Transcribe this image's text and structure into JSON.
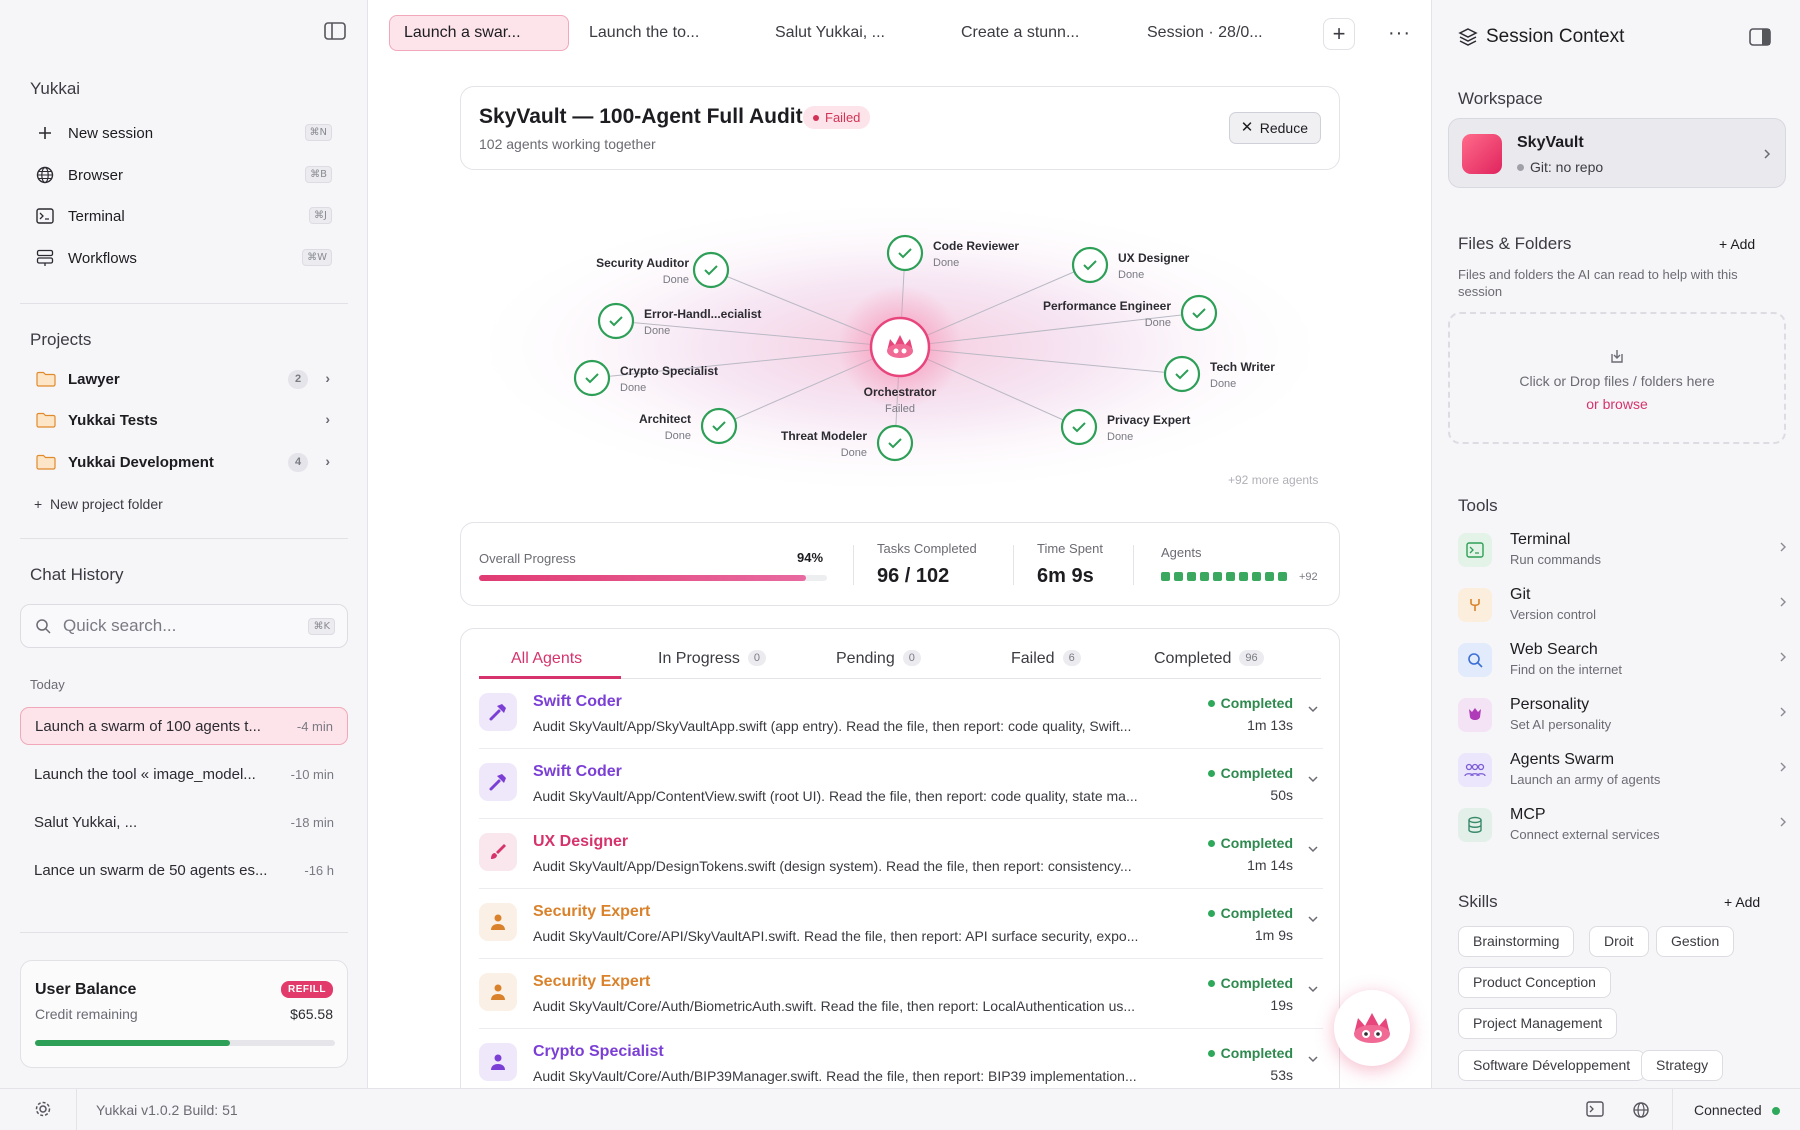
{
  "sidebar": {
    "app_name": "Yukkai",
    "menu": [
      {
        "label": "New session",
        "shortcut": "⌘N",
        "icon": "plus-icon"
      },
      {
        "label": "Browser",
        "shortcut": "⌘B",
        "icon": "globe-icon"
      },
      {
        "label": "Terminal",
        "shortcut": "⌘J",
        "icon": "terminal-icon"
      },
      {
        "label": "Workflows",
        "shortcut": "⌘W",
        "icon": "workflow-icon"
      }
    ],
    "projects_heading": "Projects",
    "projects": [
      {
        "label": "Lawyer",
        "count": "2"
      },
      {
        "label": "Yukkai Tests",
        "count": ""
      },
      {
        "label": "Yukkai Development",
        "count": "4"
      }
    ],
    "new_project_label": "New project folder",
    "history_heading": "Chat History",
    "search_placeholder": "Quick search...",
    "search_shortcut": "⌘K",
    "today_label": "Today",
    "history": [
      {
        "title": "Launch a swarm of 100 agents t...",
        "time": "-4 min",
        "active": true
      },
      {
        "title": "Launch the tool « image_model...",
        "time": "-10 min",
        "active": false
      },
      {
        "title": "Salut Yukkai, ...",
        "time": "-18 min",
        "active": false
      },
      {
        "title": "Lance un swarm de 50 agents  es...",
        "time": "-16 h",
        "active": false
      }
    ],
    "balance": {
      "title": "User Balance",
      "subtitle": "Credit remaining",
      "refill_label": "REFILL",
      "amount": "$65.58",
      "progress_fraction": 0.65
    }
  },
  "tabs": [
    {
      "label": "Launch a swar...",
      "active": true
    },
    {
      "label": "Launch the to...",
      "active": false
    },
    {
      "label": "Salut Yukkai, ...",
      "active": false
    },
    {
      "label": "Create a stunn...",
      "active": false
    },
    {
      "label": "Session · 28/0...",
      "active": false
    }
  ],
  "session": {
    "title": "SkyVault — 100-Agent Full Audit",
    "status": "Failed",
    "subtitle": "102 agents working together",
    "reduce_label": "Reduce"
  },
  "graph": {
    "center": {
      "name": "Orchestrator",
      "status": "Failed"
    },
    "nodes": [
      {
        "name": "Security Auditor",
        "status": "Done"
      },
      {
        "name": "Code Reviewer",
        "status": "Done"
      },
      {
        "name": "UX Designer",
        "status": "Done"
      },
      {
        "name": "Error-Handl...ecialist",
        "status": "Done"
      },
      {
        "name": "Performance Engineer",
        "status": "Done"
      },
      {
        "name": "Crypto Specialist",
        "status": "Done"
      },
      {
        "name": "Tech Writer",
        "status": "Done"
      },
      {
        "name": "Architect",
        "status": "Done"
      },
      {
        "name": "Threat Modeler",
        "status": "Done"
      },
      {
        "name": "Privacy Expert",
        "status": "Done"
      }
    ],
    "more_label": "+92 more agents"
  },
  "stats": {
    "progress_label": "Overall Progress",
    "progress_pct_text": "94%",
    "progress_fraction": 0.94,
    "tasks_label": "Tasks Completed",
    "tasks_value": "96 / 102",
    "time_label": "Time Spent",
    "time_value": "6m 9s",
    "agents_label": "Agents",
    "agents_more": "+92",
    "agents_squares": 10
  },
  "list_tabs": [
    {
      "label": "All Agents",
      "count": ""
    },
    {
      "label": "In Progress",
      "count": "0"
    },
    {
      "label": "Pending",
      "count": "0"
    },
    {
      "label": "Failed",
      "count": "6"
    },
    {
      "label": "Completed",
      "count": "96"
    }
  ],
  "agents": [
    {
      "name": "Swift Coder",
      "desc": "Audit SkyVault/App/SkyVaultApp.swift (app entry). Read the file, then report: code quality, Swift...",
      "status": "Completed",
      "time": "1m 13s",
      "icon": "hammer-icon",
      "color": "#7b3fd6"
    },
    {
      "name": "Swift Coder",
      "desc": "Audit SkyVault/App/ContentView.swift (root UI). Read the file, then report: code quality, state ma...",
      "status": "Completed",
      "time": "50s",
      "icon": "hammer-icon",
      "color": "#7b3fd6"
    },
    {
      "name": "UX Designer",
      "desc": "Audit SkyVault/App/DesignTokens.swift (design system). Read the file, then report: consistency...",
      "status": "Completed",
      "time": "1m 14s",
      "icon": "brush-icon",
      "color": "#d6336c"
    },
    {
      "name": "Security Expert",
      "desc": "Audit SkyVault/Core/API/SkyVaultAPI.swift. Read the file, then report: API surface security, expo...",
      "status": "Completed",
      "time": "1m 9s",
      "icon": "person-icon",
      "color": "#d9822b"
    },
    {
      "name": "Security Expert",
      "desc": "Audit SkyVault/Core/Auth/BiometricAuth.swift. Read the file, then report: LocalAuthentication us...",
      "status": "Completed",
      "time": "19s",
      "icon": "person-icon",
      "color": "#d9822b"
    },
    {
      "name": "Crypto Specialist",
      "desc": "Audit SkyVault/Core/Auth/BIP39Manager.swift. Read the file, then report: BIP39 implementation...",
      "status": "Completed",
      "time": "53s",
      "icon": "person-icon",
      "color": "#7b3fd6"
    }
  ],
  "right_panel": {
    "title": "Session Context",
    "workspace_heading": "Workspace",
    "workspace_name": "SkyVault",
    "workspace_git": "Git: no repo",
    "files_heading": "Files & Folders",
    "add_label": "Add",
    "files_desc": "Files and folders the AI can read to help with this session",
    "drop_text": "Click or Drop files / folders here",
    "browse_text": "or browse",
    "tools_heading": "Tools",
    "tools": [
      {
        "name": "Terminal",
        "sub": "Run commands",
        "icon": "terminal-icon",
        "bg": "#e3f3e7",
        "fg": "#2e9f57"
      },
      {
        "name": "Git",
        "sub": "Version control",
        "icon": "git-branch-icon",
        "bg": "#fbeedd",
        "fg": "#d9822b"
      },
      {
        "name": "Web Search",
        "sub": "Find on the internet",
        "icon": "search-icon",
        "bg": "#e2ebfb",
        "fg": "#3b6fd6"
      },
      {
        "name": "Personality",
        "sub": "Set AI personality",
        "icon": "personality-icon",
        "bg": "#f3e3f5",
        "fg": "#b03bb8"
      },
      {
        "name": "Agents Swarm",
        "sub": "Launch an army of agents",
        "icon": "agents-icon",
        "bg": "#ebe6fb",
        "fg": "#7b5bd6"
      },
      {
        "name": "MCP",
        "sub": "Connect external services",
        "icon": "database-icon",
        "bg": "#e3f0ea",
        "fg": "#3a8a6a"
      }
    ],
    "skills_heading": "Skills",
    "skills": [
      "Brainstorming",
      "Droit",
      "Gestion",
      "Product Conception",
      "Project Management",
      "Software Développement",
      "Strategy"
    ]
  },
  "footer": {
    "version": "Yukkai v1.0.2 Build: 51",
    "status": "Connected"
  }
}
